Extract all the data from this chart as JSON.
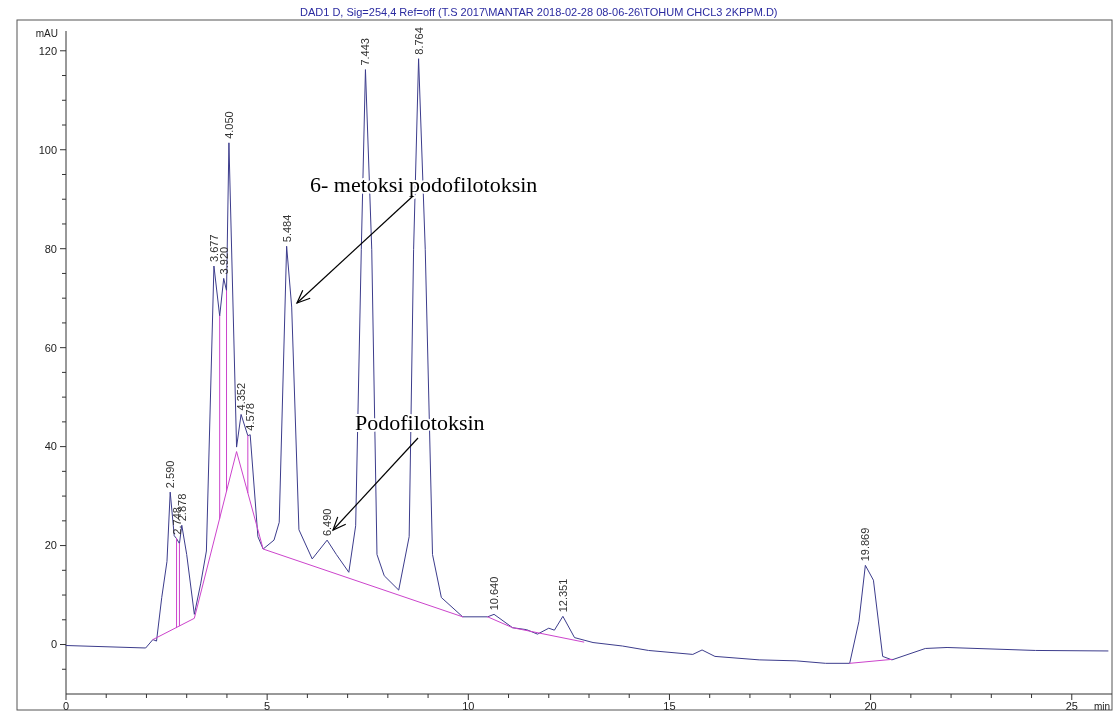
{
  "chart_data": {
    "type": "line",
    "title": "DAD1 D, Sig=254,4 Ref=off (T.S 2017\\MANTAR 2018-02-28 08-06-26\\TOHUM CHCL3 2KPPM.D)",
    "xlabel": "min",
    "ylabel": "mAU",
    "xlim": [
      0,
      26
    ],
    "ylim": [
      -10,
      124
    ],
    "xticks": [
      0,
      {
        "value": 1,
        "label": null
      },
      {
        "value": 2,
        "label": null
      },
      {
        "value": 3,
        "label": null
      },
      {
        "value": 4,
        "label": null
      },
      5,
      {
        "value": 6,
        "label": null
      },
      {
        "value": 7,
        "label": null
      },
      {
        "value": 8,
        "label": null
      },
      {
        "value": 9,
        "label": null
      },
      10,
      {
        "value": 11,
        "label": null
      },
      {
        "value": 12,
        "label": null
      },
      {
        "value": 13,
        "label": null
      },
      {
        "value": 14,
        "label": null
      },
      15,
      {
        "value": 16,
        "label": null
      },
      {
        "value": 17,
        "label": null
      },
      {
        "value": 18,
        "label": null
      },
      {
        "value": 19,
        "label": null
      },
      20,
      {
        "value": 21,
        "label": null
      },
      {
        "value": 22,
        "label": null
      },
      {
        "value": 23,
        "label": null
      },
      {
        "value": 24,
        "label": null
      },
      25
    ],
    "yticks": [
      {
        "value": -5,
        "label": null
      },
      0,
      {
        "value": 5,
        "label": null
      },
      {
        "value": 10,
        "label": null
      },
      {
        "value": 15,
        "label": null
      },
      20,
      {
        "value": 25,
        "label": null
      },
      {
        "value": 30,
        "label": null
      },
      {
        "value": 35,
        "label": null
      },
      40,
      {
        "value": 45,
        "label": null
      },
      {
        "value": 50,
        "label": null
      },
      {
        "value": 55,
        "label": null
      },
      60,
      {
        "value": 65,
        "label": null
      },
      {
        "value": 70,
        "label": null
      },
      {
        "value": 75,
        "label": null
      },
      80,
      {
        "value": 85,
        "label": null
      },
      {
        "value": 90,
        "label": null
      },
      {
        "value": 95,
        "label": null
      },
      100,
      {
        "value": 105,
        "label": null
      },
      {
        "value": 110,
        "label": null
      },
      {
        "value": 115,
        "label": null
      },
      120
    ],
    "grid": false,
    "marker": "none",
    "line_style": "solid",
    "series": [
      {
        "color": "#3c3c8c",
        "x": [
          0,
          1.98,
          2.16,
          2.25,
          2.38,
          2.51,
          2.59,
          2.69,
          2.748,
          2.82,
          2.878,
          3.0,
          3.19,
          3.35,
          3.49,
          3.677,
          3.82,
          3.92,
          3.99,
          4.05,
          4.24,
          4.352,
          4.52,
          4.578,
          4.77,
          4.9,
          5.17,
          5.3,
          5.484,
          5.61,
          5.79,
          6.12,
          6.49,
          6.72,
          7.03,
          7.2,
          7.34,
          7.443,
          7.6,
          7.73,
          7.91,
          8.27,
          8.53,
          8.64,
          8.764,
          8.93,
          9.11,
          9.33,
          9.86,
          10.48,
          10.64,
          11.1,
          11.45,
          11.72,
          12.0,
          12.14,
          12.351,
          12.64,
          13.1,
          13.83,
          14.48,
          15.58,
          15.81,
          16.13,
          17.23,
          18.15,
          18.88,
          19.48,
          19.71,
          19.869,
          20.07,
          20.3,
          20.53,
          21.36,
          21.9,
          24.1,
          25.9
        ],
        "values": [
          -0.2,
          -0.7,
          1.0,
          0.7,
          9.5,
          16.8,
          30.8,
          22,
          21.4,
          20.4,
          24.1,
          18.2,
          6.1,
          12.4,
          18.9,
          76.5,
          66.4,
          74,
          71.5,
          101.4,
          39.9,
          46.5,
          42.2,
          42.4,
          21.8,
          19.3,
          21.1,
          24.7,
          80.5,
          68.2,
          23.2,
          17.3,
          21.1,
          18.2,
          14.6,
          24,
          79.8,
          116.2,
          79.8,
          18.2,
          13.9,
          11,
          21.8,
          79.8,
          118.4,
          79.8,
          18.2,
          9.5,
          5.6,
          5.6,
          6.1,
          3.4,
          3.0,
          2.1,
          3.3,
          2.9,
          5.7,
          1.4,
          0.4,
          -0.3,
          -1.2,
          -2.0,
          -1.1,
          -2.4,
          -3.1,
          -3.3,
          -3.8,
          -3.8,
          4.7,
          16,
          13,
          -2.4,
          -3.1,
          -0.8,
          -0.6,
          -1.2,
          -1.3
        ]
      },
      {
        "color": "#cc44cc",
        "x": [
          2.16,
          3.19,
          4.24,
          4.9,
          9.86,
          10.1,
          10.48,
          11.1,
          12.87,
          15,
          19.48,
          20.53
        ],
        "values": [
          1.0,
          5.3,
          39,
          19.3,
          5.6,
          null,
          5.6,
          3.4,
          0.5,
          null,
          -3.8,
          -3.0
        ]
      },
      {
        "color": "#cc44cc",
        "x": [
          2.748,
          2.748,
          2.77,
          2.82,
          2.82,
          3.3,
          3.82,
          3.82,
          3.9,
          3.99,
          3.99,
          4.3,
          4.52,
          4.52
        ],
        "values": [
          3.4,
          21.4,
          null,
          3.8,
          20.4,
          null,
          25.5,
          66.4,
          null,
          31,
          71.5,
          null,
          30.7,
          42.2
        ]
      }
    ],
    "annotations": [
      "6- metoksi podofilotoksin",
      "Podofilotoksin",
      {
        "text": "2.590",
        "x": 2.59,
        "y": 30.8
      },
      {
        "text": "2.748",
        "x": 2.748,
        "y": 21.4
      },
      {
        "text": "2.878",
        "x": 2.878,
        "y": 24.1
      },
      {
        "text": "3.677",
        "x": 3.677,
        "y": 76.5
      },
      {
        "text": "3.920",
        "x": 3.92,
        "y": 74
      },
      {
        "text": "4.050",
        "x": 4.05,
        "y": 101.4
      },
      {
        "text": "4.352",
        "x": 4.352,
        "y": 46.5
      },
      {
        "text": "4.578",
        "x": 4.578,
        "y": 42.4
      },
      {
        "text": "5.484",
        "x": 5.484,
        "y": 80.5
      },
      {
        "text": "6.490",
        "x": 6.49,
        "y": 21.1
      },
      {
        "text": "7.443",
        "x": 7.443,
        "y": 116.2
      },
      {
        "text": "8.764",
        "x": 8.764,
        "y": 118.4
      },
      {
        "text": "10.640",
        "x": 10.64,
        "y": 6.1
      },
      {
        "text": "12.351",
        "x": 12.351,
        "y": 5.7
      },
      {
        "text": "19.869",
        "x": 19.869,
        "y": 16
      }
    ]
  }
}
